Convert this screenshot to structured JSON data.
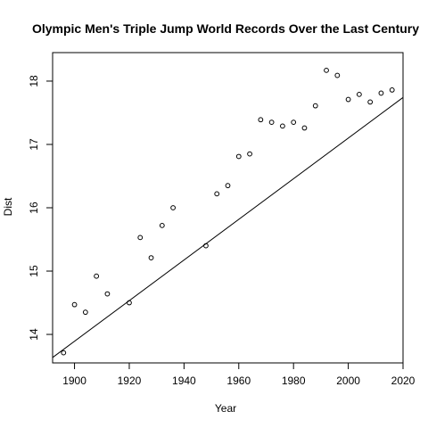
{
  "chart_data": {
    "type": "scatter",
    "title": "Olympic Men's Triple Jump World Records Over the Last Century",
    "xlabel": "Year",
    "ylabel": "Dist",
    "xlim": [
      1892,
      2020
    ],
    "ylim": [
      13.55,
      18.45
    ],
    "xticks": [
      1900,
      1920,
      1940,
      1960,
      1980,
      2000,
      2020
    ],
    "yticks": [
      14,
      15,
      16,
      17,
      18
    ],
    "grid": false,
    "legend": "none",
    "points": [
      {
        "x": 1896,
        "y": 13.71
      },
      {
        "x": 1900,
        "y": 14.47
      },
      {
        "x": 1904,
        "y": 14.35
      },
      {
        "x": 1908,
        "y": 14.92
      },
      {
        "x": 1912,
        "y": 14.64
      },
      {
        "x": 1920,
        "y": 14.5
      },
      {
        "x": 1924,
        "y": 15.53
      },
      {
        "x": 1928,
        "y": 15.21
      },
      {
        "x": 1932,
        "y": 15.72
      },
      {
        "x": 1936,
        "y": 16.0
      },
      {
        "x": 1948,
        "y": 15.4
      },
      {
        "x": 1952,
        "y": 16.22
      },
      {
        "x": 1956,
        "y": 16.35
      },
      {
        "x": 1960,
        "y": 16.81
      },
      {
        "x": 1964,
        "y": 16.85
      },
      {
        "x": 1968,
        "y": 17.39
      },
      {
        "x": 1972,
        "y": 17.35
      },
      {
        "x": 1976,
        "y": 17.29
      },
      {
        "x": 1980,
        "y": 17.35
      },
      {
        "x": 1984,
        "y": 17.26
      },
      {
        "x": 1988,
        "y": 17.61
      },
      {
        "x": 1992,
        "y": 18.17
      },
      {
        "x": 1996,
        "y": 18.09
      },
      {
        "x": 2000,
        "y": 17.71
      },
      {
        "x": 2004,
        "y": 17.79
      },
      {
        "x": 2008,
        "y": 17.67
      },
      {
        "x": 2012,
        "y": 17.81
      },
      {
        "x": 2016,
        "y": 17.86
      }
    ],
    "fit_line": {
      "intercept": -47.06,
      "slope": 0.03208
    }
  }
}
